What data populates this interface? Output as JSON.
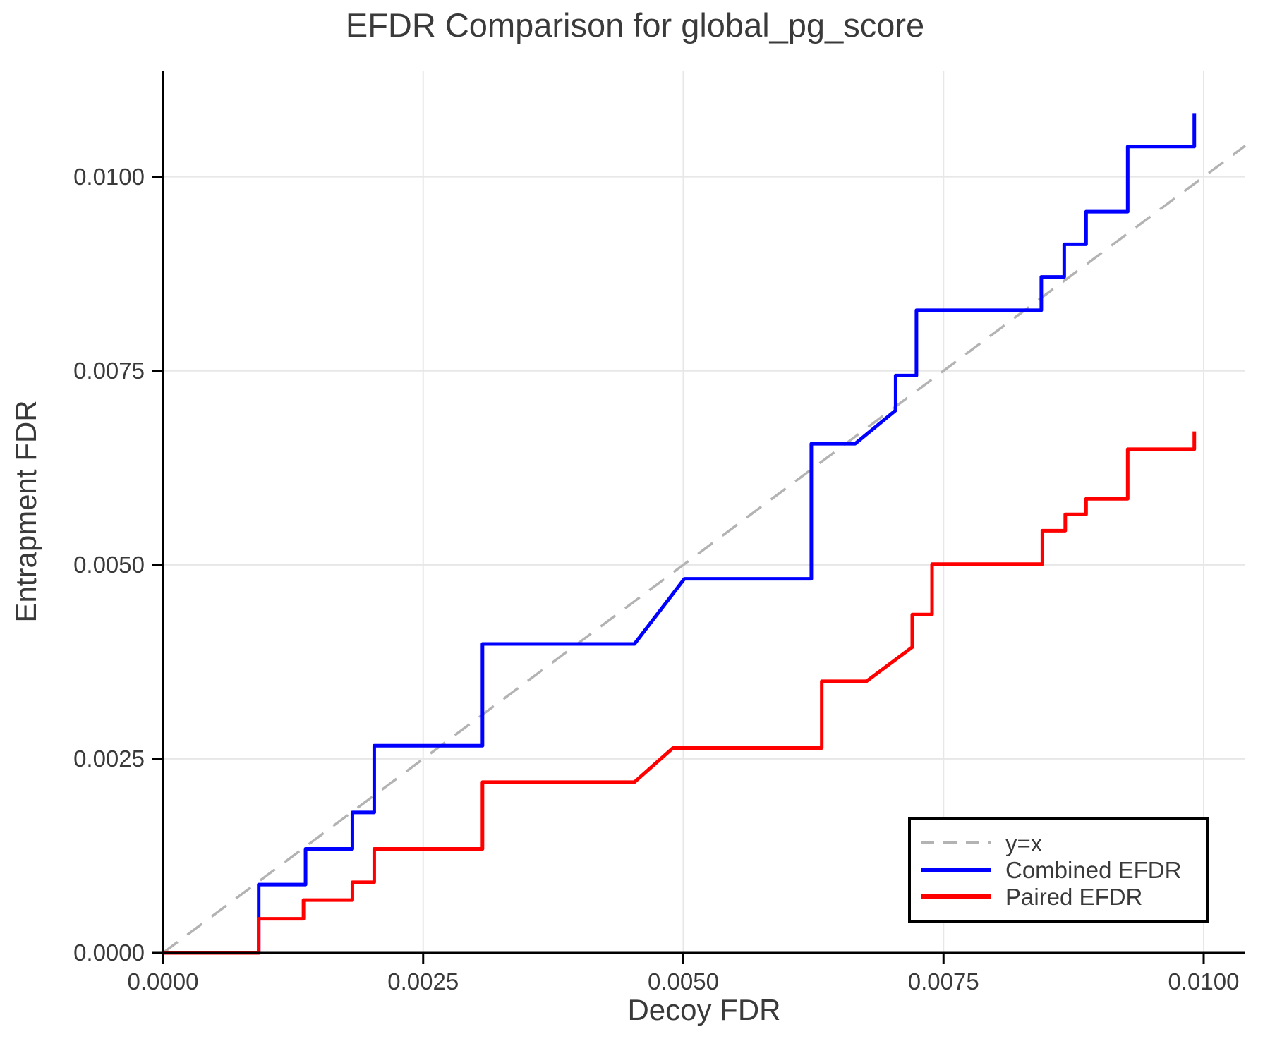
{
  "figure": {
    "title": "EFDR Comparison for global_pg_score",
    "x_axis": {
      "label": "Decoy FDR",
      "range": [
        0,
        0.0104
      ],
      "ticks": [
        {
          "value": 0.0,
          "label": "0.0000"
        },
        {
          "value": 0.0025,
          "label": "0.0025"
        },
        {
          "value": 0.005,
          "label": "0.0050"
        },
        {
          "value": 0.0075,
          "label": "0.0075"
        },
        {
          "value": 0.01,
          "label": "0.0100"
        }
      ]
    },
    "y_axis": {
      "label": "Entrapment FDR",
      "range": [
        0,
        0.01136
      ],
      "ticks": [
        {
          "value": 0.0,
          "label": "0.0000"
        },
        {
          "value": 0.0025,
          "label": "0.0025"
        },
        {
          "value": 0.005,
          "label": "0.0050"
        },
        {
          "value": 0.0075,
          "label": "0.0075"
        },
        {
          "value": 0.01,
          "label": "0.0100"
        }
      ]
    },
    "legend": {
      "position": "lower right",
      "items": [
        {
          "label": "y=x",
          "color": "#b3b3b3",
          "style": "dashed"
        },
        {
          "label": "Combined EFDR",
          "color": "#0000ff",
          "style": "solid"
        },
        {
          "label": "Paired EFDR",
          "color": "#ff0000",
          "style": "solid"
        }
      ]
    },
    "colors": {
      "text": "#3a3a3a",
      "grid": "#e7e7e7",
      "spine": "#000000",
      "background": "#ffffff"
    }
  },
  "chart_data": {
    "type": "line",
    "title": "EFDR Comparison for global_pg_score",
    "xlabel": "Decoy FDR",
    "ylabel": "Entrapment FDR",
    "xlim": [
      0,
      0.0104
    ],
    "ylim": [
      0,
      0.01136
    ],
    "grid": true,
    "legend_position": "lower right",
    "series": [
      {
        "name": "y=x",
        "color": "#b3b3b3",
        "style": "dashed",
        "width": 3.5,
        "points": [
          [
            0,
            0
          ],
          [
            0.0104,
            0.0104
          ]
        ]
      },
      {
        "name": "Combined EFDR",
        "color": "#0000ff",
        "style": "solid",
        "width": 5,
        "points": [
          [
            0,
            0
          ],
          [
            0.00092,
            0
          ],
          [
            0.00092,
            0.00088
          ],
          [
            0.00137,
            0.00088
          ],
          [
            0.00137,
            0.00134
          ],
          [
            0.00182,
            0.00134
          ],
          [
            0.00182,
            0.00181
          ],
          [
            0.00203,
            0.00181
          ],
          [
            0.00203,
            0.00267
          ],
          [
            0.00307,
            0.00267
          ],
          [
            0.00307,
            0.00398
          ],
          [
            0.00453,
            0.00398
          ],
          [
            0.00501,
            0.00482
          ],
          [
            0.00623,
            0.00482
          ],
          [
            0.00623,
            0.00656
          ],
          [
            0.00665,
            0.00656
          ],
          [
            0.00704,
            0.00699
          ],
          [
            0.00704,
            0.00744
          ],
          [
            0.00724,
            0.00744
          ],
          [
            0.00724,
            0.00828
          ],
          [
            0.00844,
            0.00828
          ],
          [
            0.00844,
            0.00871
          ],
          [
            0.00866,
            0.00871
          ],
          [
            0.00866,
            0.00913
          ],
          [
            0.00887,
            0.00913
          ],
          [
            0.00887,
            0.00955
          ],
          [
            0.00927,
            0.00955
          ],
          [
            0.00927,
            0.01039
          ],
          [
            0.00991,
            0.01039
          ],
          [
            0.00991,
            0.01082
          ]
        ]
      },
      {
        "name": "Paired EFDR",
        "color": "#ff0000",
        "style": "solid",
        "width": 5,
        "points": [
          [
            0,
            0
          ],
          [
            0.00092,
            0
          ],
          [
            0.00092,
            0.00044
          ],
          [
            0.00135,
            0.00044
          ],
          [
            0.00135,
            0.00068
          ],
          [
            0.00182,
            0.00068
          ],
          [
            0.00182,
            0.00091
          ],
          [
            0.00203,
            0.00091
          ],
          [
            0.00203,
            0.00134
          ],
          [
            0.00307,
            0.00134
          ],
          [
            0.00307,
            0.0022
          ],
          [
            0.00453,
            0.0022
          ],
          [
            0.0049,
            0.00264
          ],
          [
            0.00633,
            0.00264
          ],
          [
            0.00633,
            0.0035
          ],
          [
            0.00676,
            0.0035
          ],
          [
            0.0072,
            0.00394
          ],
          [
            0.0072,
            0.00436
          ],
          [
            0.00739,
            0.00436
          ],
          [
            0.00739,
            0.00501
          ],
          [
            0.00845,
            0.00501
          ],
          [
            0.00845,
            0.00544
          ],
          [
            0.00867,
            0.00544
          ],
          [
            0.00867,
            0.00565
          ],
          [
            0.00887,
            0.00565
          ],
          [
            0.00887,
            0.00585
          ],
          [
            0.00927,
            0.00585
          ],
          [
            0.00927,
            0.00649
          ],
          [
            0.00991,
            0.00649
          ],
          [
            0.00991,
            0.00672
          ]
        ]
      }
    ]
  }
}
